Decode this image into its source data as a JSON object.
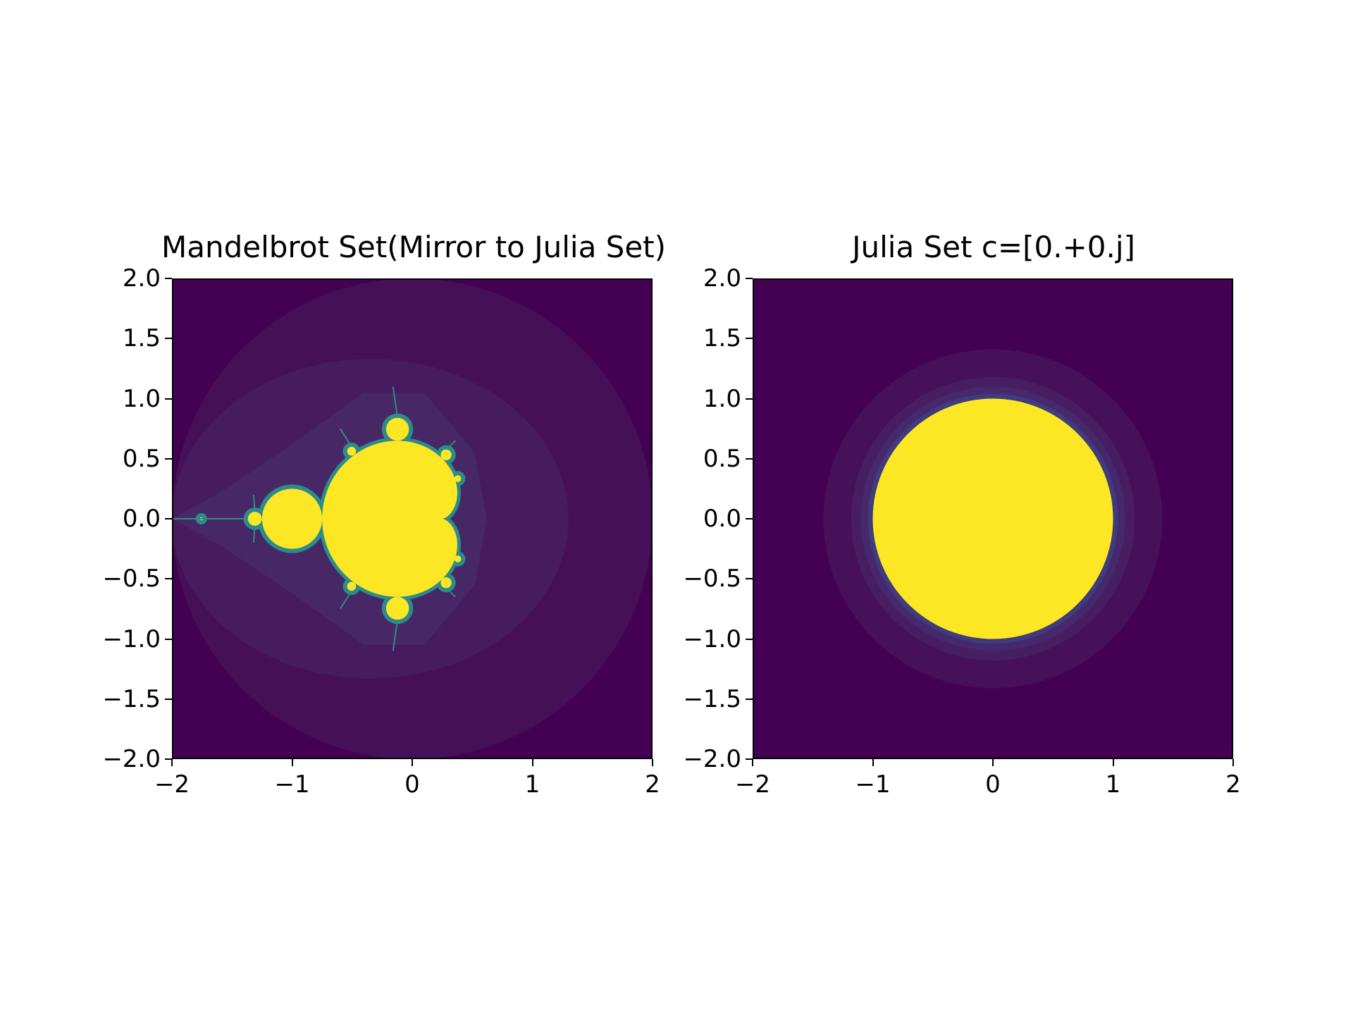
{
  "chart_data": [
    {
      "type": "heatmap",
      "title": "Mandelbrot Set(Mirror to Julia Set)",
      "xlabel": "",
      "ylabel": "",
      "xlim": [
        -2,
        2
      ],
      "ylim": [
        -2,
        2
      ],
      "xticks": [
        "−2",
        "−1",
        "0",
        "1",
        "2"
      ],
      "xtick_values": [
        -2,
        -1,
        0,
        1,
        2
      ],
      "yticks": [
        "2.0",
        "1.5",
        "1.0",
        "0.5",
        "0.0",
        "−0.5",
        "−1.0",
        "−1.5",
        "−2.0"
      ],
      "ytick_values": [
        2.0,
        1.5,
        1.0,
        0.5,
        0.0,
        -0.5,
        -1.0,
        -1.5,
        -2.0
      ],
      "colormap": "viridis",
      "grid": false,
      "colors": {
        "background": "#440154",
        "band1": "#461058",
        "band2": "#471b5f",
        "band3": "#472766",
        "edge": "#2c8c8a",
        "set": "#fde725"
      }
    },
    {
      "type": "heatmap",
      "title": "Julia Set c=[0.+0.j]",
      "xlabel": "",
      "ylabel": "",
      "xlim": [
        -2,
        2
      ],
      "ylim": [
        -2,
        2
      ],
      "xticks": [
        "−2",
        "−1",
        "0",
        "1",
        "2"
      ],
      "xtick_values": [
        -2,
        -1,
        0,
        1,
        2
      ],
      "yticks": [
        "2.0",
        "1.5",
        "1.0",
        "0.5",
        "0.0",
        "−0.5",
        "−1.0",
        "−1.5",
        "−2.0"
      ],
      "ytick_values": [
        2.0,
        1.5,
        1.0,
        0.5,
        0.0,
        -0.5,
        -1.0,
        -1.5,
        -2.0
      ],
      "colormap": "viridis",
      "grid": false,
      "bands": [
        {
          "radius": 1.41,
          "color": "#46105a"
        },
        {
          "radius": 1.18,
          "color": "#471e62"
        },
        {
          "radius": 1.1,
          "color": "#46286c"
        },
        {
          "radius": 1.04,
          "color": "#3f3c7e"
        },
        {
          "radius": 1.0,
          "color": "#fde725"
        }
      ]
    }
  ]
}
